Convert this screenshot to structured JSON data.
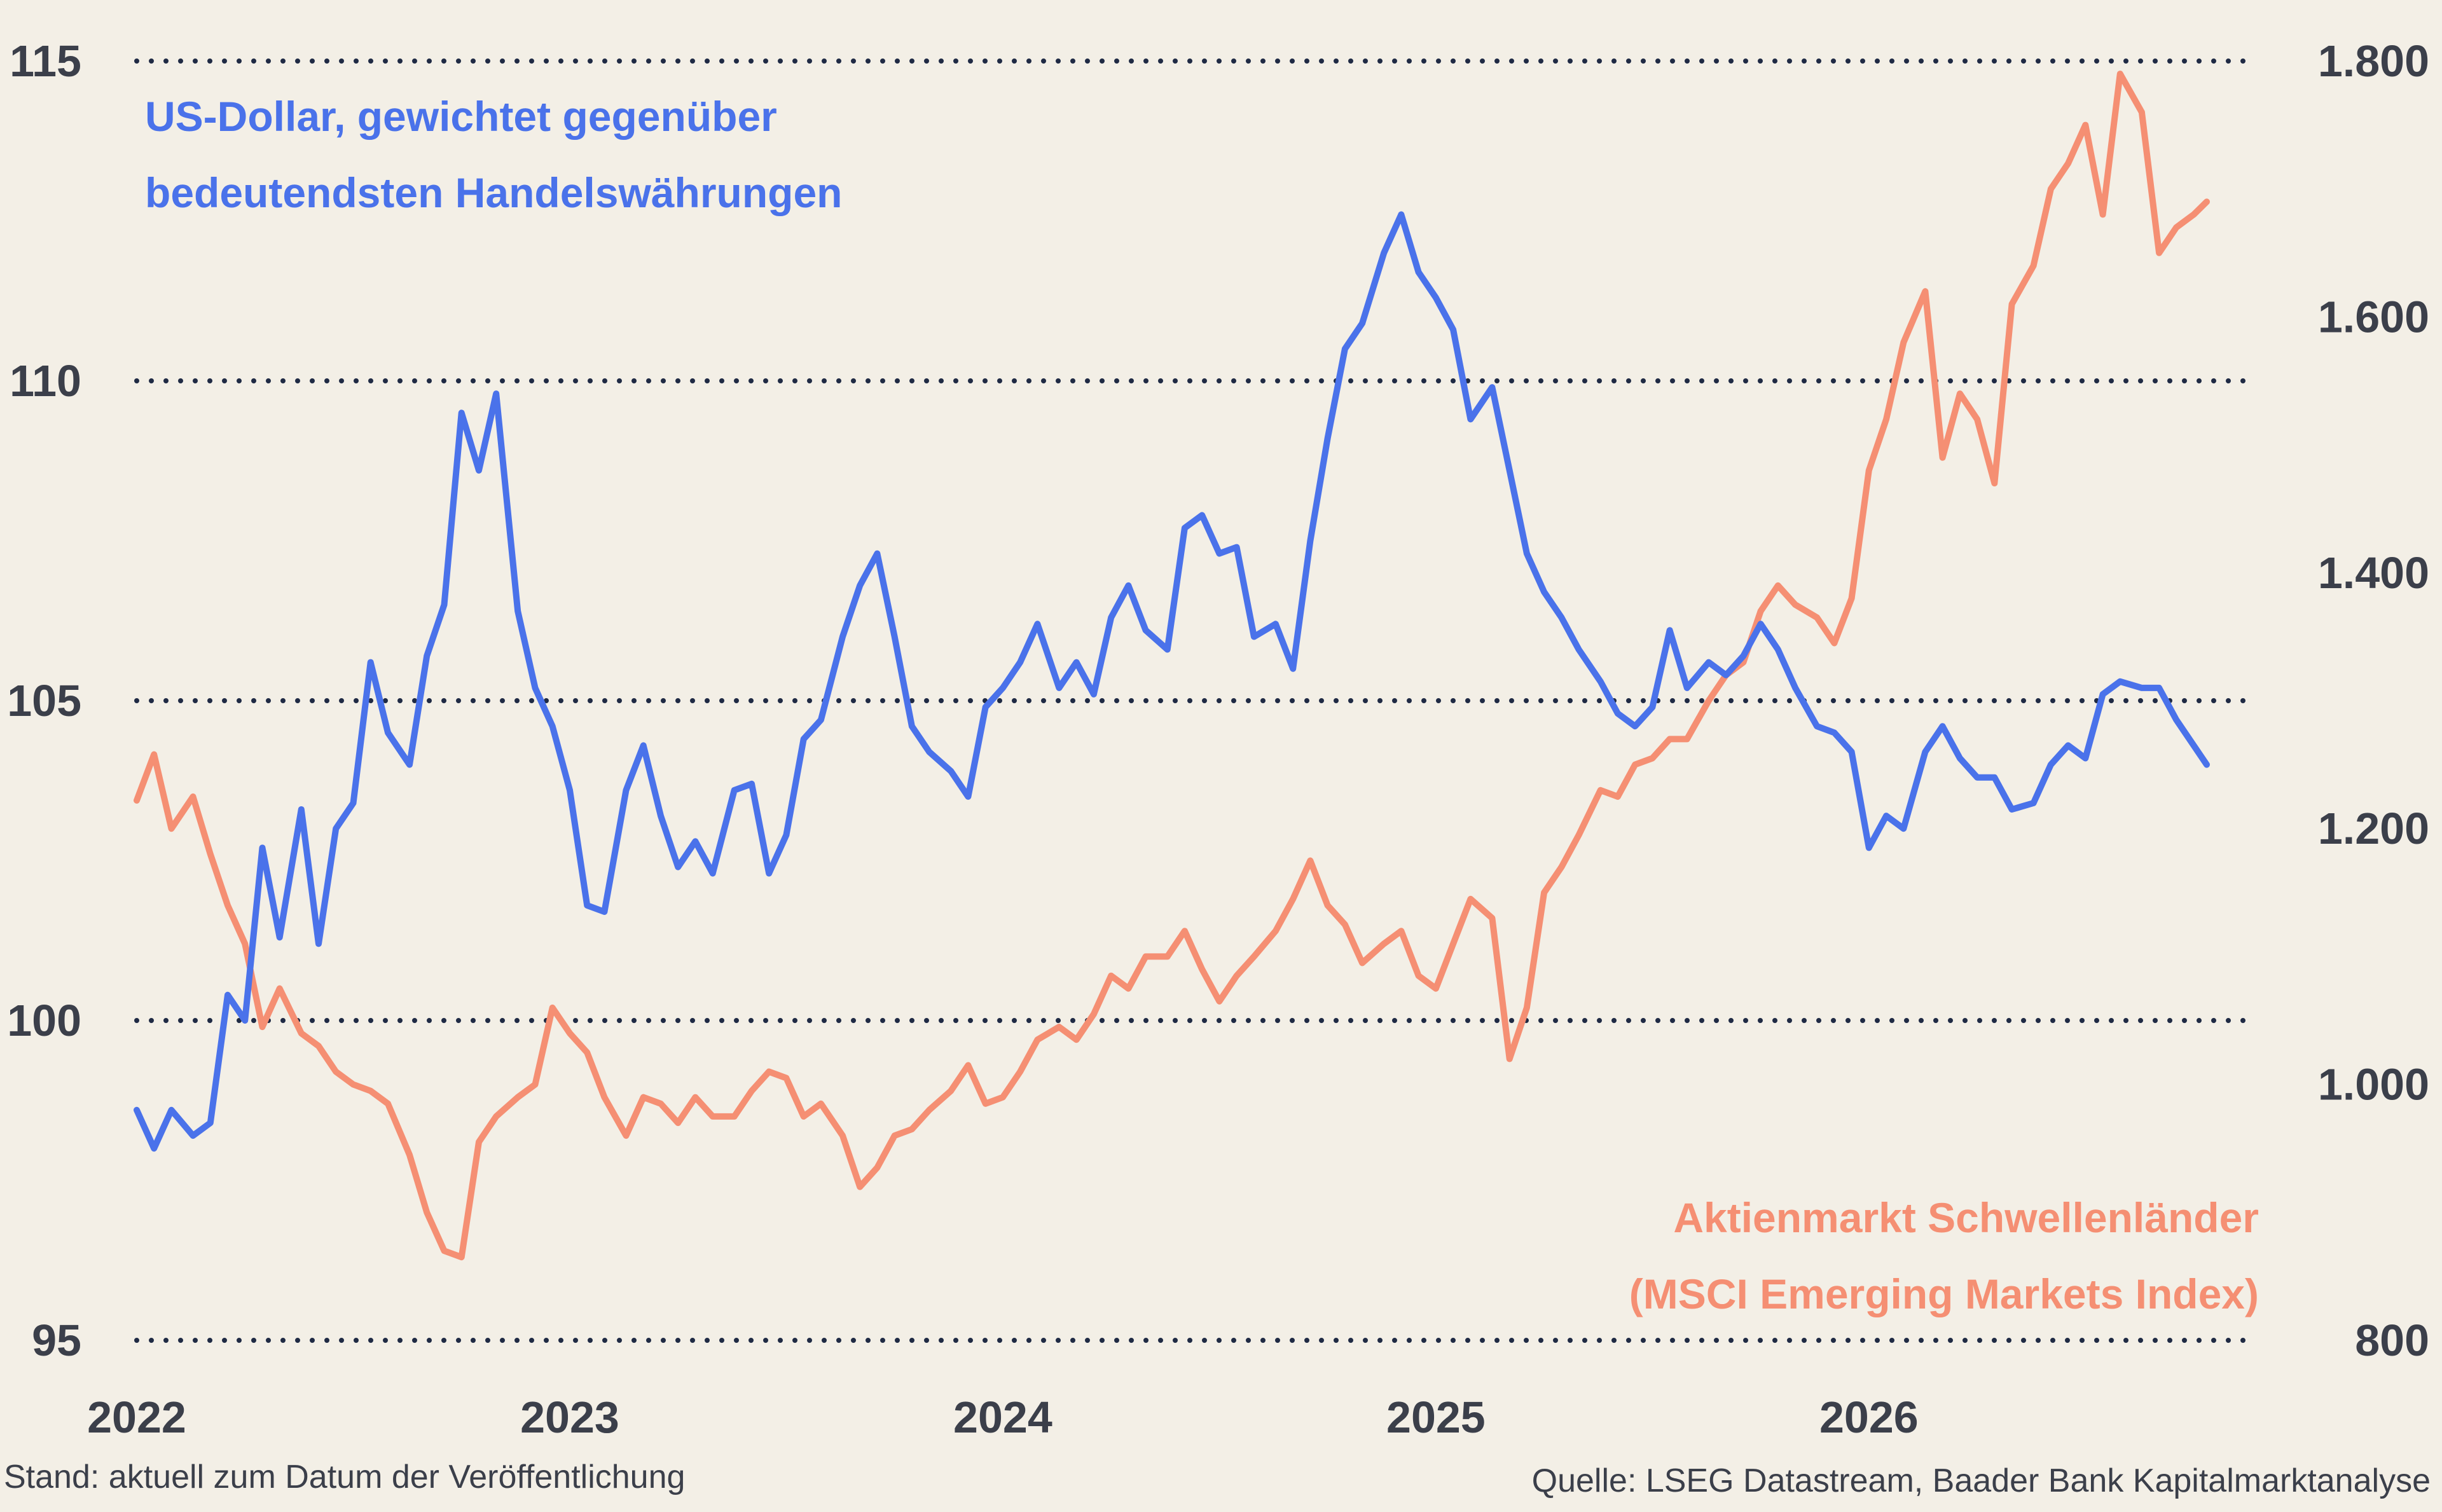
{
  "colors": {
    "background": "#f3efe6",
    "usd": "#4a72ea",
    "em": "#f58f73",
    "grid": "#1f2a44",
    "text": "#3b3f4a"
  },
  "labels": {
    "usd_line1": "US-Dollar, gewichtet gegenüber",
    "usd_line2": "bedeutendsten Handelswährungen",
    "em_line1": "Aktienmarkt Schwellenländer",
    "em_line2": "(MSCI Emerging Markets Index)"
  },
  "footer": {
    "left": "Stand: aktuell zum Datum der Veröffentlichung",
    "right": "Quelle: LSEG Datastream, Baader Bank Kapitalmarktanalyse"
  },
  "chart_data": {
    "type": "line",
    "x_ticks": [
      "2022",
      "2023",
      "2024",
      "2025",
      "2026"
    ],
    "xlim": [
      2022,
      2026.78
    ],
    "left_axis": {
      "ylim": [
        95,
        115
      ],
      "ticks": [
        "95",
        "100",
        "105",
        "110",
        "115"
      ]
    },
    "right_axis": {
      "ylim": [
        800,
        1800
      ],
      "ticks": [
        "800",
        "1.000",
        "1.200",
        "1.400",
        "1.600",
        "1.800"
      ]
    },
    "grid": "horizontal dotted at left-axis ticks",
    "series": [
      {
        "name": "US-Dollar, gewichtet gegenüber bedeutendsten Handelswährungen",
        "axis": "left",
        "x": [
          2022.0,
          2022.04,
          2022.08,
          2022.13,
          2022.17,
          2022.21,
          2022.25,
          2022.29,
          2022.33,
          2022.38,
          2022.42,
          2022.46,
          2022.5,
          2022.54,
          2022.58,
          2022.63,
          2022.67,
          2022.71,
          2022.75,
          2022.79,
          2022.83,
          2022.88,
          2022.92,
          2022.96,
          2023.0,
          2023.04,
          2023.08,
          2023.13,
          2023.17,
          2023.21,
          2023.25,
          2023.29,
          2023.33,
          2023.38,
          2023.42,
          2023.46,
          2023.5,
          2023.54,
          2023.58,
          2023.63,
          2023.67,
          2023.71,
          2023.75,
          2023.79,
          2023.83,
          2023.88,
          2023.92,
          2023.96,
          2024.0,
          2024.04,
          2024.08,
          2024.13,
          2024.17,
          2024.21,
          2024.25,
          2024.29,
          2024.33,
          2024.38,
          2024.42,
          2024.46,
          2024.5,
          2024.54,
          2024.58,
          2024.63,
          2024.67,
          2024.71,
          2024.75,
          2024.79,
          2024.83,
          2024.88,
          2024.92,
          2024.96,
          2025.0,
          2025.04,
          2025.08,
          2025.13,
          2025.17,
          2025.21,
          2025.25,
          2025.29,
          2025.33,
          2025.38,
          2025.42,
          2025.46,
          2025.5,
          2025.54,
          2025.58,
          2025.63,
          2025.67,
          2025.71,
          2025.75,
          2025.79,
          2025.83,
          2025.88,
          2025.92,
          2025.96,
          2026.0,
          2026.04,
          2026.08,
          2026.13,
          2026.17,
          2026.21,
          2026.25,
          2026.29,
          2026.33,
          2026.38,
          2026.42,
          2026.46,
          2026.5,
          2026.54,
          2026.58,
          2026.63,
          2026.67,
          2026.71,
          2026.75,
          2026.78
        ],
        "values": [
          98.6,
          98.0,
          98.6,
          98.2,
          98.4,
          100.4,
          100.0,
          102.7,
          101.3,
          103.3,
          101.2,
          103.0,
          103.4,
          105.6,
          104.5,
          104.0,
          105.7,
          106.5,
          109.5,
          108.6,
          109.8,
          106.4,
          105.2,
          104.6,
          103.6,
          101.8,
          101.7,
          103.6,
          104.3,
          103.2,
          102.4,
          102.8,
          102.3,
          103.6,
          103.7,
          102.3,
          102.9,
          104.4,
          104.7,
          106.0,
          106.8,
          107.3,
          106.0,
          104.6,
          104.2,
          103.9,
          103.5,
          104.9,
          105.2,
          105.6,
          106.2,
          105.2,
          105.6,
          105.1,
          106.3,
          106.8,
          106.1,
          105.8,
          107.7,
          107.9,
          107.3,
          107.4,
          106.0,
          106.2,
          105.5,
          107.5,
          109.1,
          110.5,
          110.9,
          112.0,
          112.6,
          111.7,
          111.3,
          110.8,
          109.4,
          109.9,
          108.6,
          107.3,
          106.7,
          106.3,
          105.8,
          105.3,
          104.8,
          104.6,
          104.9,
          106.1,
          105.2,
          105.6,
          105.4,
          105.7,
          106.2,
          105.8,
          105.2,
          104.6,
          104.5,
          104.2,
          102.7,
          103.2,
          103.0,
          104.2,
          104.6,
          104.1,
          103.8,
          103.8,
          103.3,
          103.4,
          104.0,
          104.3,
          104.1,
          105.1,
          105.3,
          105.2,
          105.2,
          104.7,
          104.3,
          104.0
        ]
      },
      {
        "name": "Aktienmarkt Schwellenländer (MSCI Emerging Markets Index)",
        "axis": "right",
        "x": [
          2022.0,
          2022.04,
          2022.08,
          2022.13,
          2022.17,
          2022.21,
          2022.25,
          2022.29,
          2022.33,
          2022.38,
          2022.42,
          2022.46,
          2022.5,
          2022.54,
          2022.58,
          2022.63,
          2022.67,
          2022.71,
          2022.75,
          2022.79,
          2022.83,
          2022.88,
          2022.92,
          2022.96,
          2023.0,
          2023.04,
          2023.08,
          2023.13,
          2023.17,
          2023.21,
          2023.25,
          2023.29,
          2023.33,
          2023.38,
          2023.42,
          2023.46,
          2023.5,
          2023.54,
          2023.58,
          2023.63,
          2023.67,
          2023.71,
          2023.75,
          2023.79,
          2023.83,
          2023.88,
          2023.92,
          2023.96,
          2024.0,
          2024.04,
          2024.08,
          2024.13,
          2024.17,
          2024.21,
          2024.25,
          2024.29,
          2024.33,
          2024.38,
          2024.42,
          2024.46,
          2024.5,
          2024.54,
          2024.58,
          2024.63,
          2024.67,
          2024.71,
          2024.75,
          2024.79,
          2024.83,
          2024.88,
          2024.92,
          2024.96,
          2025.0,
          2025.04,
          2025.08,
          2025.13,
          2025.17,
          2025.21,
          2025.25,
          2025.29,
          2025.33,
          2025.38,
          2025.42,
          2025.46,
          2025.5,
          2025.54,
          2025.58,
          2025.63,
          2025.67,
          2025.71,
          2025.75,
          2025.79,
          2025.83,
          2025.88,
          2025.92,
          2025.96,
          2026.0,
          2026.04,
          2026.08,
          2026.13,
          2026.17,
          2026.21,
          2026.25,
          2026.29,
          2026.33,
          2026.38,
          2026.42,
          2026.46,
          2026.5,
          2026.54,
          2026.58,
          2026.63,
          2026.67,
          2026.71,
          2026.75,
          2026.78
        ],
        "values": [
          1222,
          1258,
          1200,
          1225,
          1180,
          1140,
          1110,
          1045,
          1075,
          1040,
          1030,
          1010,
          1000,
          995,
          985,
          945,
          900,
          870,
          865,
          955,
          975,
          990,
          1000,
          1060,
          1040,
          1025,
          990,
          960,
          990,
          985,
          970,
          990,
          975,
          975,
          995,
          1010,
          1005,
          975,
          985,
          960,
          920,
          935,
          960,
          965,
          980,
          995,
          1015,
          985,
          990,
          1010,
          1035,
          1045,
          1035,
          1055,
          1085,
          1075,
          1100,
          1100,
          1120,
          1090,
          1065,
          1085,
          1100,
          1120,
          1145,
          1175,
          1140,
          1125,
          1095,
          1110,
          1120,
          1085,
          1075,
          1110,
          1145,
          1130,
          1020,
          1060,
          1150,
          1170,
          1195,
          1230,
          1225,
          1250,
          1255,
          1270,
          1270,
          1300,
          1320,
          1330,
          1370,
          1390,
          1375,
          1365,
          1345,
          1380,
          1480,
          1520,
          1580,
          1620,
          1490,
          1540,
          1520,
          1470,
          1610,
          1640,
          1700,
          1720,
          1750,
          1680,
          1790,
          1760,
          1650,
          1670,
          1680,
          1690
        ]
      }
    ]
  }
}
